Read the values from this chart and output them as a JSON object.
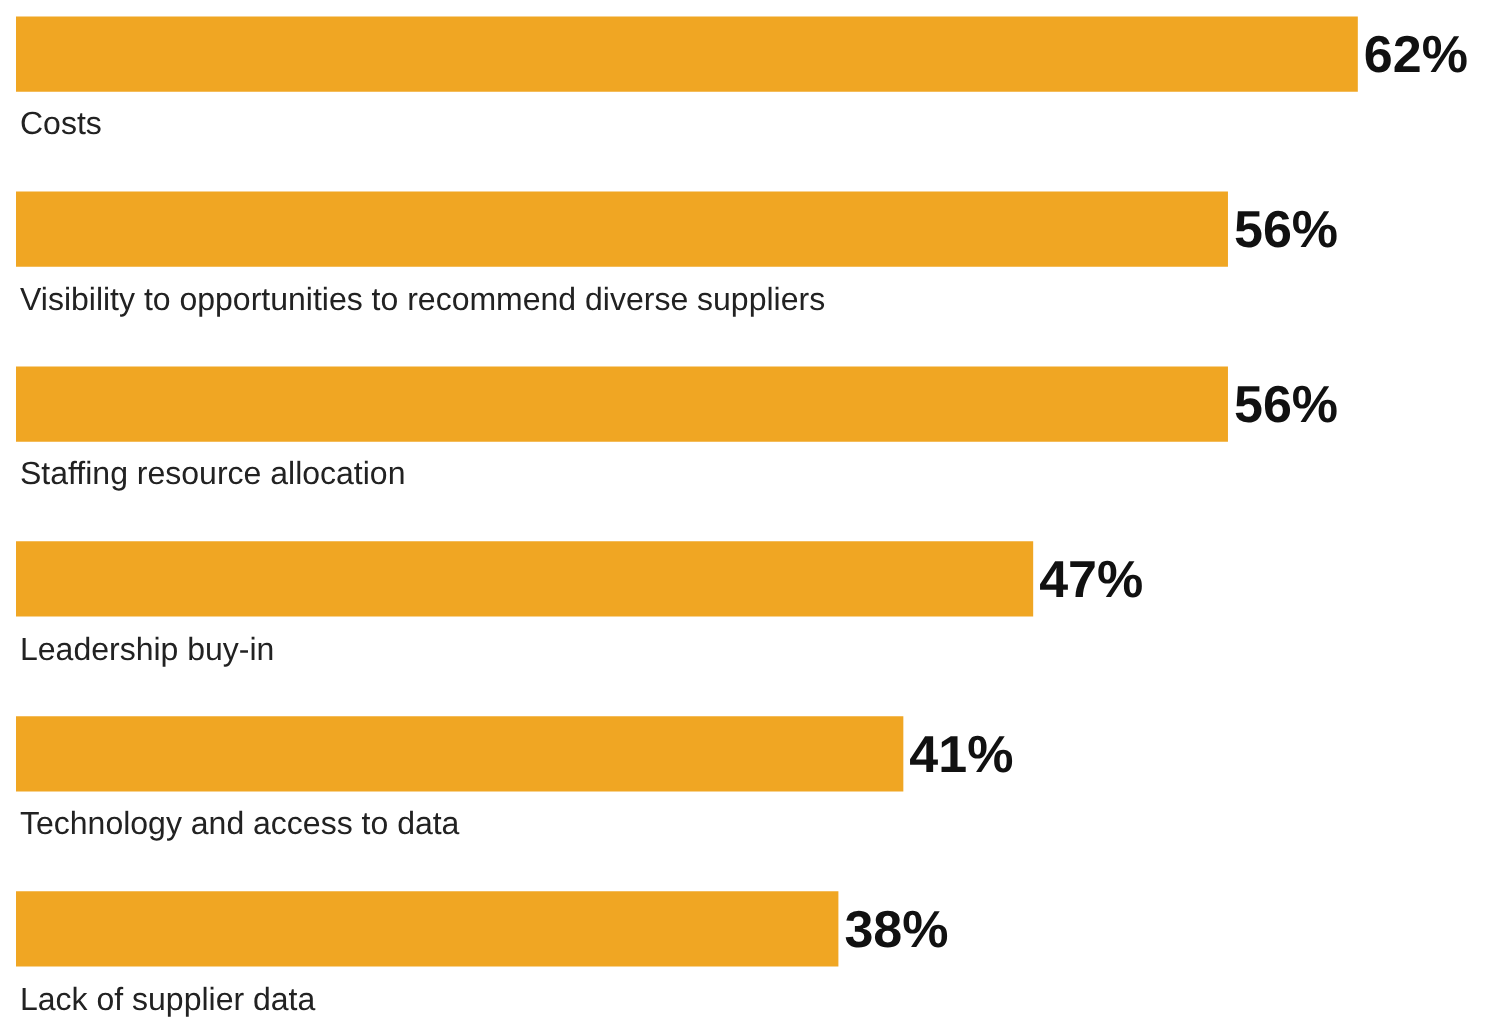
{
  "chart_data": {
    "type": "bar",
    "orientation": "horizontal",
    "categories": [
      "Costs",
      "Visibility to opportunities to recommend diverse suppliers",
      "Staffing resource allocation",
      "Leadership buy-in",
      "Technology and access to data",
      "Lack of supplier data"
    ],
    "values": [
      62,
      56,
      56,
      47,
      41,
      38
    ],
    "value_labels": [
      "62%",
      "56%",
      "56%",
      "47%",
      "41%",
      "38%"
    ],
    "color": "#f0a623"
  }
}
